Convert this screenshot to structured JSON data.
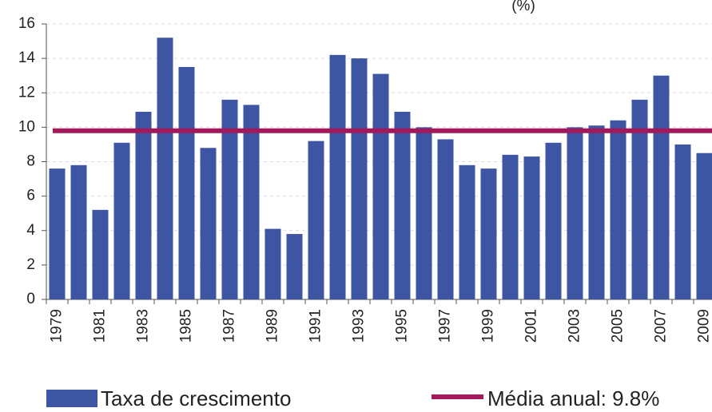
{
  "chart_data": {
    "type": "bar",
    "unit_label": "(%)",
    "categories": [
      "1979",
      null,
      "1981",
      null,
      "1983",
      null,
      "1985",
      null,
      "1987",
      null,
      "1989",
      null,
      "1991",
      null,
      "1993",
      null,
      "1995",
      null,
      "1997",
      null,
      "1999",
      null,
      "2001",
      null,
      "2003",
      null,
      "2005",
      null,
      "2007",
      null,
      "2009"
    ],
    "series": [
      {
        "name": "Taxa de crescimento",
        "color": "#3d55a2",
        "values": [
          7.6,
          7.8,
          5.2,
          9.1,
          10.9,
          15.2,
          13.5,
          8.8,
          11.6,
          11.3,
          4.1,
          3.8,
          9.2,
          14.2,
          14.0,
          13.1,
          10.9,
          10.0,
          9.3,
          7.8,
          7.6,
          8.4,
          8.3,
          9.1,
          10.0,
          10.1,
          10.4,
          11.6,
          13.0,
          9.0,
          8.5
        ]
      }
    ],
    "average": {
      "name": "Média anual: 9.8%",
      "value": 9.8,
      "color": "#a3195b"
    },
    "ylim": [
      0,
      16
    ],
    "yticks": [
      0,
      2,
      4,
      6,
      8,
      10,
      12,
      14,
      16
    ],
    "grid": true
  }
}
